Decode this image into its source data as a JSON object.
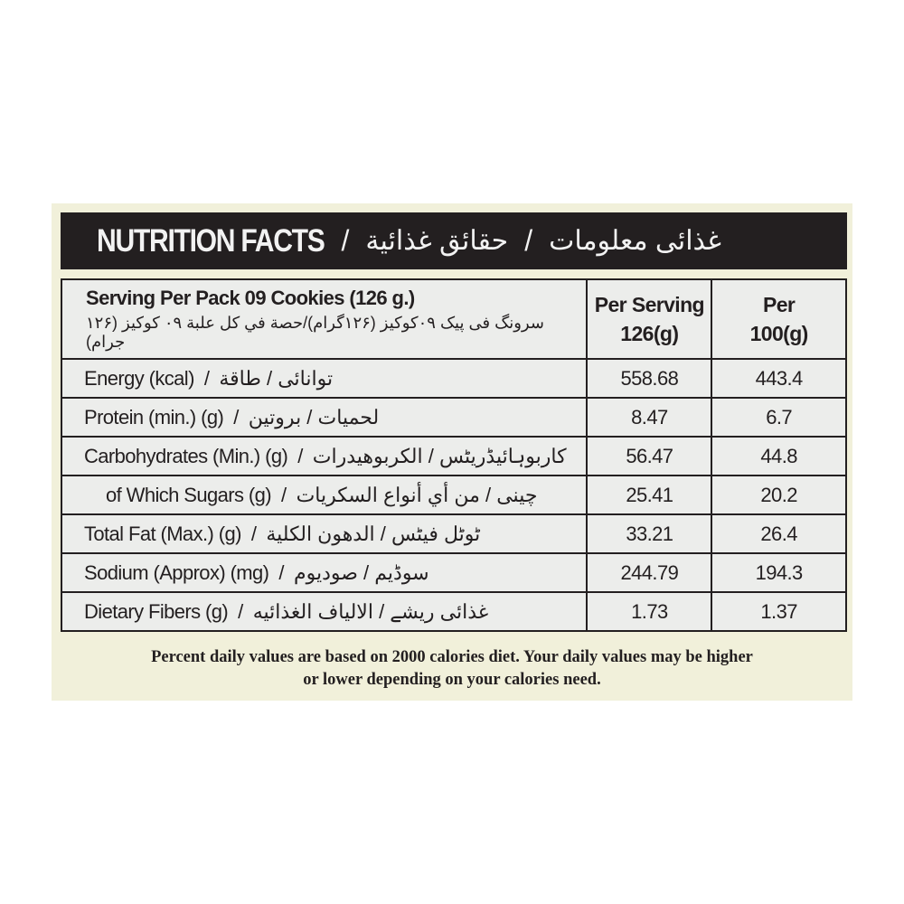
{
  "header": {
    "title_en": "NUTRITION FACTS",
    "separator": "/",
    "title_ar": "حقائق غذائية",
    "title_ur": "غذائی معلومات"
  },
  "table": {
    "serving_en": "Serving Per Pack 09 Cookies (126 g.)",
    "serving_ar": "سرونگ فی پیک ۰۹کوکیز (۱۲۶گرام)/حصة في كل علبة ۰۹ كوكيز (۱۲۶ جرام)",
    "col_per_serving": "Per Serving",
    "col_per_serving_sub": "126(g)",
    "col_per_100": "Per",
    "col_per_100_sub": "100(g)",
    "rows": [
      {
        "en": "Energy (kcal)",
        "ar": "توانائی / طاقة",
        "serving": "558.68",
        "per100": "443.4"
      },
      {
        "en": "Protein (min.) (g)",
        "ar": "لحميات / بروتين",
        "serving": "8.47",
        "per100": "6.7"
      },
      {
        "en": "Carbohydrates (Min.) (g)",
        "ar": "كاربوہائیڈریٹس / الكربوهيدرات",
        "serving": "56.47",
        "per100": "44.8"
      },
      {
        "en": "of Which Sugars (g)",
        "ar": "چینی / من أي أنواع السكريات",
        "serving": "25.41",
        "per100": "20.2"
      },
      {
        "en": "Total Fat (Max.) (g)",
        "ar": "ٹوٹل فیٹس / الدهون الكلية",
        "serving": "33.21",
        "per100": "26.4"
      },
      {
        "en": "Sodium (Approx) (mg)",
        "ar": "سوڈیم / صوديوم",
        "serving": "244.79",
        "per100": "194.3"
      },
      {
        "en": "Dietary Fibers (g)",
        "ar": "غذائی ریشے / الالياف الغذائيه",
        "serving": "1.73",
        "per100": "1.37"
      }
    ]
  },
  "footer": {
    "line1": "Percent daily values are based on 2000 calories diet. Your daily values may be higher",
    "line2": "or lower depending on your calories need."
  }
}
